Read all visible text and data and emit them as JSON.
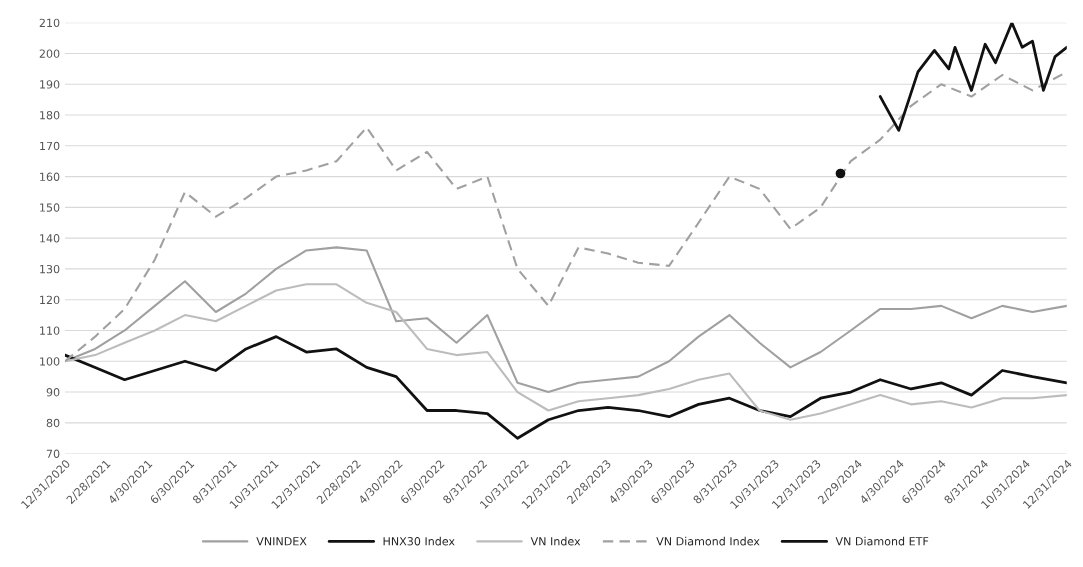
{
  "chart_data": {
    "type": "line",
    "x": [
      "2020-12-31",
      "2021-02-13",
      "2021-03-28",
      "2021-05-11",
      "2021-06-24",
      "2021-08-08",
      "2021-09-21",
      "2021-11-04",
      "2021-12-18",
      "2022-01-31",
      "2022-03-16",
      "2022-04-28",
      "2022-06-12",
      "2022-07-25",
      "2022-09-08",
      "2022-10-22",
      "2022-12-06",
      "2023-01-19",
      "2023-03-03",
      "2023-04-16",
      "2023-05-31",
      "2023-07-13",
      "2023-08-27",
      "2023-10-10",
      "2023-11-24",
      "2024-01-07",
      "2024-02-20",
      "2024-04-03",
      "2024-05-18",
      "2024-07-01",
      "2024-08-14",
      "2024-09-28",
      "2024-11-11",
      "2024-12-31"
    ],
    "series": [
      {
        "name": "VNINDEX",
        "color": "#a0a0a0",
        "line_style": "solid",
        "values": [
          100,
          104,
          110,
          118,
          126,
          116,
          122,
          130,
          136,
          137,
          136,
          113,
          114,
          106,
          115,
          93,
          90,
          93,
          94,
          95,
          100,
          108,
          115,
          106,
          98,
          103,
          110,
          117,
          117,
          118,
          114,
          118,
          116,
          118
        ]
      },
      {
        "name": "HNX30 Index",
        "color": "#111111",
        "line_style": "solid",
        "values": [
          102,
          98,
          94,
          97,
          100,
          97,
          104,
          108,
          103,
          104,
          98,
          95,
          84,
          84,
          83,
          75,
          81,
          84,
          85,
          84,
          82,
          86,
          88,
          84,
          82,
          88,
          90,
          94,
          91,
          93,
          89,
          97,
          95,
          93
        ]
      },
      {
        "name": "VN Index",
        "color": "#bcbcbc",
        "line_style": "solid",
        "values": [
          100,
          102,
          106,
          110,
          115,
          113,
          118,
          123,
          125,
          125,
          119,
          116,
          104,
          102,
          103,
          90,
          84,
          87,
          88,
          89,
          91,
          94,
          96,
          84,
          81,
          83,
          86,
          89,
          86,
          87,
          85,
          88,
          88,
          89
        ]
      },
      {
        "name": "VN Diamond Index",
        "color": "#a0a0a0",
        "line_style": "dashed",
        "values": [
          100,
          108,
          117,
          133,
          155,
          147,
          153,
          160,
          162,
          165,
          176,
          162,
          168,
          156,
          160,
          130,
          118,
          137,
          135,
          132,
          131,
          145,
          160,
          156,
          143,
          150,
          165,
          172,
          183,
          190,
          186,
          193,
          188,
          194
        ]
      },
      {
        "name": "VN Diamond ETF",
        "color": "#111111",
        "line_style": "solid",
        "x": [
          "2024-02-05",
          "2024-03-05",
          "2024-04-03",
          "2024-04-30",
          "2024-05-28",
          "2024-06-21",
          "2024-07-12",
          "2024-07-21",
          "2024-08-14",
          "2024-09-03",
          "2024-09-18",
          "2024-10-12",
          "2024-10-27",
          "2024-11-11",
          "2024-11-27",
          "2024-12-14",
          "2024-12-31"
        ],
        "values": [
          161,
          null,
          186,
          175,
          194,
          201,
          195,
          202,
          188,
          203,
          197,
          210,
          202,
          204,
          188,
          199,
          202
        ]
      }
    ],
    "xlim": [
      "2020-12-31",
      "2024-12-31"
    ],
    "xticks": [
      {
        "value": "2020-12-31",
        "label": "12/31/2020"
      },
      {
        "value": "2021-02-28",
        "label": "2/28/2021"
      },
      {
        "value": "2021-04-30",
        "label": "4/30/2021"
      },
      {
        "value": "2021-06-30",
        "label": "6/30/2021"
      },
      {
        "value": "2021-08-31",
        "label": "8/31/2021"
      },
      {
        "value": "2021-10-31",
        "label": "10/31/2021"
      },
      {
        "value": "2021-12-31",
        "label": "12/31/2021"
      },
      {
        "value": "2022-02-28",
        "label": "2/28/2022"
      },
      {
        "value": "2022-04-30",
        "label": "4/30/2022"
      },
      {
        "value": "2022-06-30",
        "label": "6/30/2022"
      },
      {
        "value": "2022-08-31",
        "label": "8/31/2022"
      },
      {
        "value": "2022-10-31",
        "label": "10/31/2022"
      },
      {
        "value": "2022-12-31",
        "label": "12/31/2022"
      },
      {
        "value": "2023-02-28",
        "label": "2/28/2023"
      },
      {
        "value": "2023-04-30",
        "label": "4/30/2023"
      },
      {
        "value": "2023-06-30",
        "label": "6/30/2023"
      },
      {
        "value": "2023-08-31",
        "label": "8/31/2023"
      },
      {
        "value": "2023-10-31",
        "label": "10/31/2023"
      },
      {
        "value": "2023-12-31",
        "label": "12/31/2023"
      },
      {
        "value": "2024-02-29",
        "label": "2/29/2024"
      },
      {
        "value": "2024-04-30",
        "label": "4/30/2024"
      },
      {
        "value": "2024-06-30",
        "label": "6/30/2024"
      },
      {
        "value": "2024-08-31",
        "label": "8/31/2024"
      },
      {
        "value": "2024-10-31",
        "label": "10/31/2024"
      },
      {
        "value": "2024-12-31",
        "label": "12/31/2024"
      }
    ],
    "ylim": [
      70,
      210
    ],
    "yticks": [
      70,
      80,
      90,
      100,
      110,
      120,
      130,
      140,
      150,
      160,
      170,
      180,
      190,
      200,
      210
    ],
    "grid": "y",
    "legend": "bottom"
  }
}
